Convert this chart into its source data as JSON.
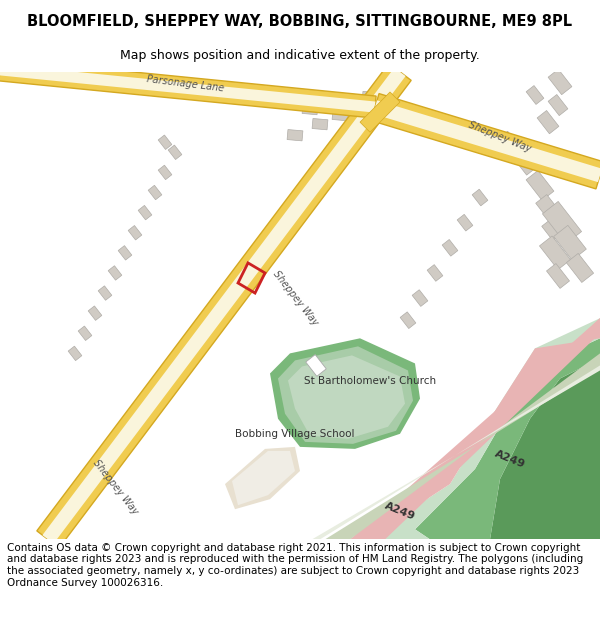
{
  "title": "BLOOMFIELD, SHEPPEY WAY, BOBBING, SITTINGBOURNE, ME9 8PL",
  "subtitle": "Map shows position and indicative extent of the property.",
  "footer": "Contains OS data © Crown copyright and database right 2021. This information is subject to Crown copyright and database rights 2023 and is reproduced with the permission of HM Land Registry. The polygons (including the associated geometry, namely x, y co-ordinates) are subject to Crown copyright and database rights 2023 Ordnance Survey 100026316.",
  "map_bg": "#f5f2ee",
  "road_yellow": "#f0cc50",
  "road_yellow_edge": "#d4a820",
  "road_yellow_inner": "#faf5dc",
  "green_dark": "#5a9a5a",
  "green_mid": "#7ab87a",
  "green_light": "#a8cca8",
  "green_lighter": "#c8e0c8",
  "pink_road": "#e8b4b4",
  "beige_area": "#e8e0d0",
  "beige_light": "#f0ede5",
  "building_fill": "#d0cbc4",
  "building_edge": "#b0ada8",
  "plot_red": "#cc2222",
  "label_color": "#555555",
  "title_fontsize": 10.5,
  "subtitle_fontsize": 9.0,
  "footer_fontsize": 7.5
}
